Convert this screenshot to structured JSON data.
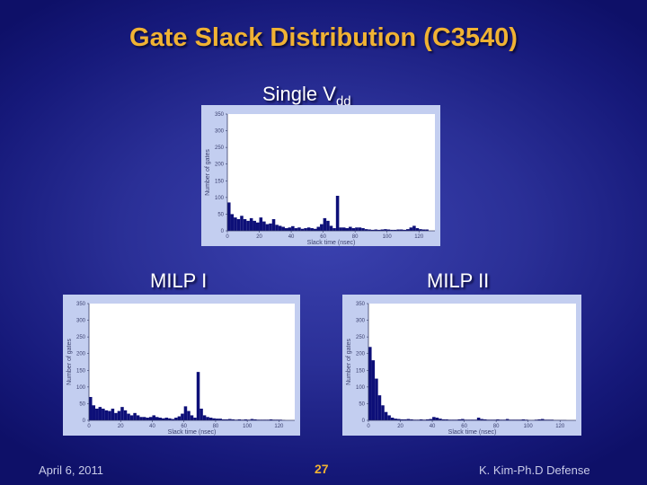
{
  "title": "Gate Slack Distribution (C3540)",
  "labels": {
    "single_prefix": "Single V",
    "single_sub": "dd",
    "milp1": "MILP I",
    "milp2": "MILP II"
  },
  "footer": {
    "date": "April 6, 2011",
    "page": "27",
    "author": "K. Kim-Ph.D Defense"
  },
  "chart_data": [
    {
      "id": "single_vdd",
      "type": "bar",
      "title": "Single Vdd",
      "xlabel": "Slack time (nsec)",
      "ylabel": "Number of gates",
      "xlim": [
        0,
        130
      ],
      "ylim": [
        0,
        350
      ],
      "xticks": [
        0,
        20,
        40,
        60,
        80,
        100,
        120
      ],
      "yticks": [
        0,
        50,
        100,
        150,
        200,
        250,
        300,
        350
      ],
      "bin_width": 2,
      "values": [
        85,
        50,
        40,
        35,
        45,
        35,
        30,
        38,
        30,
        25,
        40,
        28,
        20,
        22,
        35,
        18,
        15,
        12,
        8,
        10,
        14,
        8,
        10,
        6,
        8,
        10,
        8,
        6,
        12,
        20,
        38,
        30,
        15,
        8,
        105,
        10,
        10,
        8,
        12,
        8,
        10,
        10,
        8,
        5,
        4,
        3,
        4,
        3,
        4,
        5,
        4,
        3,
        3,
        4,
        4,
        3,
        5,
        10,
        15,
        8,
        5,
        4,
        4,
        0,
        0
      ]
    },
    {
      "id": "milp_1",
      "type": "bar",
      "title": "MILP I",
      "xlabel": "Slack time (nsec)",
      "ylabel": "Number of gates",
      "xlim": [
        0,
        130
      ],
      "ylim": [
        0,
        350
      ],
      "xticks": [
        0,
        20,
        40,
        60,
        80,
        100,
        120
      ],
      "yticks": [
        0,
        50,
        100,
        150,
        200,
        250,
        300,
        350
      ],
      "bin_width": 2,
      "values": [
        70,
        45,
        35,
        40,
        35,
        30,
        28,
        35,
        22,
        28,
        40,
        30,
        20,
        15,
        22,
        15,
        10,
        10,
        8,
        10,
        15,
        10,
        8,
        6,
        8,
        6,
        4,
        8,
        12,
        20,
        42,
        28,
        15,
        8,
        145,
        35,
        15,
        10,
        8,
        6,
        5,
        5,
        3,
        3,
        4,
        3,
        2,
        3,
        2,
        3,
        2,
        4,
        3,
        2,
        2,
        2,
        2,
        3,
        2,
        2,
        2,
        1,
        0,
        0,
        0
      ]
    },
    {
      "id": "milp_2",
      "type": "bar",
      "title": "MILP II",
      "xlabel": "Slack time (nsec)",
      "ylabel": "Number of gates",
      "xlim": [
        0,
        130
      ],
      "ylim": [
        0,
        350
      ],
      "xticks": [
        0,
        20,
        40,
        60,
        80,
        100,
        120
      ],
      "yticks": [
        0,
        50,
        100,
        150,
        200,
        250,
        300,
        350
      ],
      "bin_width": 2,
      "values": [
        220,
        180,
        125,
        75,
        45,
        25,
        15,
        8,
        5,
        4,
        3,
        3,
        4,
        3,
        2,
        2,
        3,
        2,
        3,
        4,
        10,
        8,
        5,
        3,
        3,
        2,
        2,
        2,
        3,
        4,
        2,
        2,
        2,
        2,
        8,
        4,
        3,
        2,
        2,
        2,
        3,
        2,
        2,
        4,
        2,
        2,
        2,
        2,
        3,
        2,
        1,
        1,
        2,
        3,
        4,
        2,
        2,
        2,
        1,
        1,
        1,
        1,
        0,
        0,
        0
      ]
    }
  ]
}
